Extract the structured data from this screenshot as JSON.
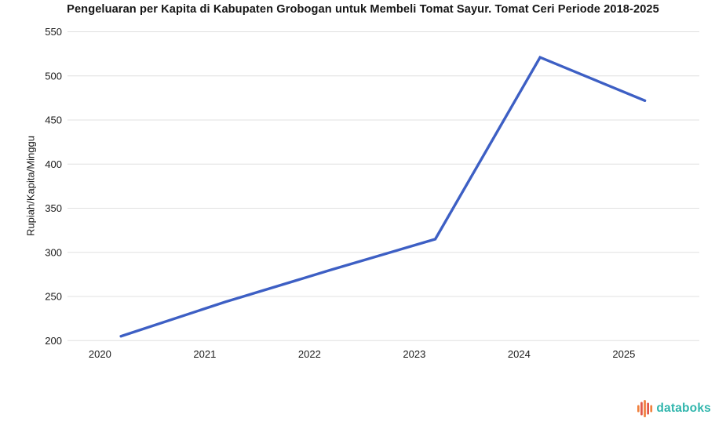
{
  "chart_data": {
    "type": "line",
    "title": "Pengeluaran per Kapita di Kabupaten Grobogan untuk Membeli Tomat Sayur. Tomat Ceri Periode 2018-2025",
    "xlabel": "",
    "ylabel": "Rupiah/Kapita/Minggu",
    "x": [
      2020.2,
      2021.2,
      2022.2,
      2023.2,
      2024.2,
      2025.2
    ],
    "values": [
      205,
      244,
      280,
      315,
      521,
      472
    ],
    "x_ticks": [
      2020,
      2021,
      2022,
      2023,
      2024,
      2025
    ],
    "y_ticks": [
      200,
      250,
      300,
      350,
      400,
      450,
      500,
      550
    ],
    "xlim": [
      2019.69,
      2025.72
    ],
    "ylim": [
      200,
      550
    ],
    "grid": true,
    "legend": false,
    "line_color": "#3D5FC4",
    "grid_color": "#E0E0E0",
    "tick_color": "#1A1A1A"
  },
  "branding": {
    "logo_text": "databoks",
    "logo_text_color": "#2FB5AC",
    "logo_bar_colors": [
      "#F0813E",
      "#E15648",
      "#F0813E",
      "#E15648",
      "#F0813E"
    ]
  }
}
